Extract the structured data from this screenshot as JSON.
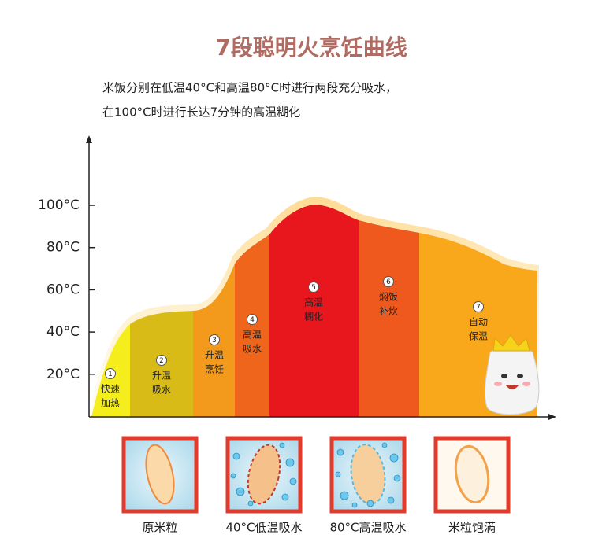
{
  "title": "7段聪明火烹饪曲线",
  "description": [
    "米饭分别在低温40°C和高温80°C时进行两段充分吸水，",
    "在100°C时进行长达7分钟的高温糊化"
  ],
  "y_axis": {
    "ticks": [
      "100°C",
      "80°C",
      "60°C",
      "40°C",
      "20°C"
    ]
  },
  "stages": [
    {
      "number": 1,
      "label": [
        "快速",
        "加热"
      ]
    },
    {
      "number": 2,
      "label": [
        "升温",
        "吸水"
      ]
    },
    {
      "number": 3,
      "label": [
        "升温",
        "烹饪"
      ]
    },
    {
      "number": 4,
      "label": [
        "高温",
        "吸水"
      ]
    },
    {
      "number": 5,
      "label": [
        "高温",
        "糊化"
      ]
    },
    {
      "number": 6,
      "label": [
        "焖饭",
        "补炊"
      ]
    },
    {
      "number": 7,
      "label": [
        "自动",
        "保温"
      ]
    }
  ],
  "panels": [
    "原米粒",
    "40°C低温吸水",
    "80°C高温吸水",
    "米粒饱满"
  ]
}
